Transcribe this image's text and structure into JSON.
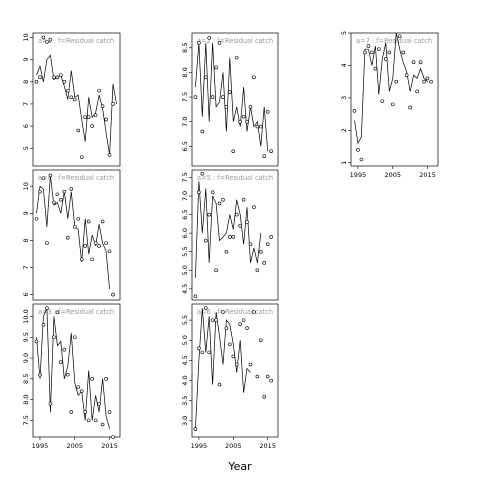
{
  "xlabel": "Year",
  "chart_data": [
    {
      "type": "line",
      "strip_label": "a=1  :  f=Residual catch",
      "xlim": [
        1993,
        2018
      ],
      "ylim": [
        4.2,
        10.2
      ],
      "yticks": [
        5,
        6,
        7,
        8,
        9,
        10
      ],
      "xticks": [
        1995,
        2005,
        2015
      ],
      "line": {
        "x": [
          1994,
          1995,
          1996,
          1997,
          1998,
          1999,
          2000,
          2001,
          2002,
          2003,
          2004,
          2005,
          2006,
          2007,
          2008,
          2009,
          2010,
          2011,
          2012,
          2013,
          2014,
          2015,
          2016,
          2017
        ],
        "y": [
          8.3,
          8.7,
          8.0,
          9.0,
          9.2,
          8.1,
          8.2,
          8.3,
          7.8,
          7.2,
          8.5,
          7.3,
          7.4,
          6.3,
          5.3,
          7.3,
          6.4,
          6.6,
          7.4,
          6.8,
          5.7,
          4.7,
          7.9,
          7.0
        ]
      },
      "points": {
        "x": [
          1994,
          1995,
          1996,
          1997,
          1998,
          1999,
          2000,
          2001,
          2002,
          2003,
          2004,
          2005,
          2006,
          2007,
          2008,
          2009,
          2010,
          2011,
          2012,
          2013,
          2014,
          2015,
          2016
        ],
        "y": [
          8.0,
          8.2,
          10.0,
          9.8,
          9.9,
          8.2,
          8.2,
          8.3,
          8.0,
          7.6,
          7.3,
          7.2,
          5.8,
          4.6,
          6.4,
          6.4,
          6.0,
          6.5,
          7.6,
          6.9,
          6.3,
          4.7,
          7.0
        ]
      }
    },
    {
      "type": "line",
      "strip_label": "a=4  :  f=Residual catch",
      "xlim": [
        1993,
        2018
      ],
      "ylim": [
        5.8,
        10.6
      ],
      "yticks": [
        6,
        7,
        8,
        9,
        10
      ],
      "xticks": [
        1995,
        2005,
        2015
      ],
      "line": {
        "x": [
          1994,
          1995,
          1996,
          1997,
          1998,
          1999,
          2000,
          2001,
          2002,
          2003,
          2004,
          2005,
          2006,
          2007,
          2008,
          2009,
          2010,
          2011,
          2012,
          2013,
          2014,
          2015,
          2016,
          2017
        ],
        "y": [
          9.0,
          10.0,
          9.9,
          8.5,
          10.4,
          9.3,
          9.4,
          9.0,
          9.8,
          8.8,
          9.8,
          8.5,
          8.4,
          7.2,
          8.8,
          7.5,
          8.2,
          7.8,
          8.6,
          7.9,
          7.6,
          6.2,
          null,
          null
        ]
      },
      "points": {
        "x": [
          1994,
          1995,
          1996,
          1997,
          1998,
          1999,
          2000,
          2001,
          2002,
          2003,
          2004,
          2005,
          2006,
          2007,
          2008,
          2009,
          2010,
          2011,
          2012,
          2013,
          2014,
          2015,
          2016
        ],
        "y": [
          8.8,
          9.8,
          10.3,
          7.9,
          10.4,
          9.4,
          9.7,
          9.5,
          9.8,
          8.1,
          9.9,
          8.5,
          8.8,
          7.3,
          7.8,
          8.7,
          7.3,
          7.9,
          7.8,
          8.7,
          7.9,
          7.6,
          6.0
        ]
      }
    },
    {
      "type": "line",
      "strip_label": "a=3  :  f=Residual catch",
      "xlim": [
        1993,
        2018
      ],
      "ylim": [
        7.1,
        10.3
      ],
      "yticks": [
        7.5,
        8.0,
        8.5,
        9.0,
        9.5,
        10.0
      ],
      "xticks": [
        1995,
        2005,
        2015
      ],
      "line": {
        "x": [
          1994,
          1995,
          1996,
          1997,
          1998,
          1999,
          2000,
          2001,
          2002,
          2003,
          2004,
          2005,
          2006,
          2007,
          2008,
          2009,
          2010,
          2011,
          2012,
          2013,
          2014,
          2015,
          2016,
          2017
        ],
        "y": [
          9.5,
          8.5,
          10.0,
          10.2,
          7.7,
          10.0,
          9.3,
          9.4,
          8.5,
          8.8,
          9.6,
          8.4,
          8.1,
          8.2,
          7.5,
          8.7,
          7.5,
          8.1,
          7.7,
          8.5,
          7.6,
          7.3,
          null,
          null
        ]
      },
      "points": {
        "x": [
          1994,
          1995,
          1996,
          1997,
          1998,
          1999,
          2000,
          2001,
          2002,
          2003,
          2004,
          2005,
          2006,
          2007,
          2008,
          2009,
          2010,
          2011,
          2012,
          2013,
          2014,
          2015,
          2016
        ],
        "y": [
          9.4,
          8.6,
          9.8,
          10.2,
          7.9,
          9.5,
          10.1,
          8.9,
          9.2,
          8.6,
          7.7,
          9.5,
          8.3,
          8.2,
          7.7,
          7.5,
          8.5,
          7.5,
          7.9,
          7.4,
          8.5,
          7.7,
          7.1
        ]
      }
    },
    {
      "type": "line",
      "strip_label": "a=2  :  f=Residual catch",
      "xlim": [
        1993,
        2018
      ],
      "ylim": [
        6.1,
        8.8
      ],
      "yticks": [
        6.5,
        7.0,
        7.5,
        8.0,
        8.5
      ],
      "xticks": [
        1995,
        2005,
        2015
      ],
      "line": {
        "x": [
          1994,
          1995,
          1996,
          1997,
          1998,
          1999,
          2000,
          2001,
          2002,
          2003,
          2004,
          2005,
          2006,
          2007,
          2008,
          2009,
          2010,
          2011,
          2012,
          2013,
          2014,
          2015,
          2016,
          2017
        ],
        "y": [
          7.7,
          8.6,
          7.1,
          8.6,
          7.0,
          8.6,
          7.3,
          7.4,
          8.0,
          6.8,
          8.3,
          7.0,
          7.3,
          6.9,
          7.7,
          6.8,
          7.3,
          6.9,
          7.0,
          6.5,
          7.3,
          6.4,
          null,
          null
        ]
      },
      "points": {
        "x": [
          1994,
          1995,
          1996,
          1997,
          1998,
          1999,
          2000,
          2001,
          2002,
          2003,
          2004,
          2005,
          2006,
          2007,
          2008,
          2009,
          2010,
          2011,
          2012,
          2013,
          2014,
          2015,
          2016
        ],
        "y": [
          7.5,
          8.6,
          6.8,
          7.9,
          8.7,
          7.5,
          8.1,
          8.6,
          7.5,
          7.3,
          7.6,
          6.4,
          8.3,
          7.0,
          7.1,
          7.0,
          7.3,
          7.9,
          6.9,
          6.9,
          6.3,
          7.2,
          6.4
        ]
      }
    },
    {
      "type": "line",
      "strip_label": "a=5  :  f=Residual catch",
      "xlim": [
        1993,
        2018
      ],
      "ylim": [
        4.2,
        7.7
      ],
      "yticks": [
        4.5,
        5.0,
        5.5,
        6.0,
        6.5,
        7.0,
        7.5
      ],
      "xticks": [
        1995,
        2005,
        2015
      ],
      "line": {
        "x": [
          1994,
          1995,
          1996,
          1997,
          1998,
          1999,
          2000,
          2001,
          2002,
          2003,
          2004,
          2005,
          2006,
          2007,
          2008,
          2009,
          2010,
          2011,
          2012,
          2013,
          2014,
          2015,
          2016,
          2017
        ],
        "y": [
          4.8,
          7.4,
          6.0,
          7.2,
          5.2,
          7.0,
          6.8,
          5.8,
          5.9,
          6.0,
          6.5,
          6.1,
          6.9,
          6.5,
          5.7,
          6.7,
          5.2,
          5.6,
          5.2,
          6.0,
          null,
          null,
          null,
          null
        ]
      },
      "points": {
        "x": [
          1994,
          1995,
          1996,
          1997,
          1998,
          1999,
          2000,
          2001,
          2002,
          2003,
          2004,
          2005,
          2006,
          2007,
          2008,
          2009,
          2010,
          2011,
          2012,
          2013,
          2014,
          2015,
          2016
        ],
        "y": [
          4.3,
          7.1,
          7.6,
          5.8,
          6.5,
          7.1,
          5.0,
          6.8,
          6.9,
          5.5,
          5.9,
          5.9,
          6.5,
          6.2,
          6.9,
          6.3,
          5.7,
          6.7,
          5.0,
          5.5,
          5.2,
          5.7,
          5.9
        ]
      }
    },
    {
      "type": "line",
      "strip_label": "a=6  :  f=Residual catch",
      "xlim": [
        1993,
        2018
      ],
      "ylim": [
        2.6,
        5.9
      ],
      "yticks": [
        3.0,
        3.5,
        4.0,
        4.5,
        5.0,
        5.5
      ],
      "xticks": [
        1995,
        2005,
        2015
      ],
      "line": {
        "x": [
          1994,
          1995,
          1996,
          1997,
          1998,
          1999,
          2000,
          2001,
          2002,
          2003,
          2004,
          2005,
          2006,
          2007,
          2008,
          2009,
          2010,
          2011,
          2012,
          2013,
          2014,
          2015,
          2016,
          2017
        ],
        "y": [
          2.8,
          4.5,
          5.8,
          4.7,
          5.6,
          3.9,
          5.7,
          5.1,
          4.4,
          5.5,
          5.4,
          4.9,
          4.2,
          5.0,
          3.7,
          4.3,
          4.2,
          null,
          null,
          null,
          null,
          null,
          null,
          null
        ]
      },
      "points": {
        "x": [
          1994,
          1995,
          1996,
          1997,
          1998,
          1999,
          2000,
          2001,
          2002,
          2003,
          2004,
          2005,
          2006,
          2007,
          2008,
          2009,
          2010,
          2011,
          2012,
          2013,
          2014,
          2015,
          2016
        ],
        "y": [
          2.8,
          4.8,
          4.7,
          5.8,
          4.7,
          5.5,
          5.5,
          3.9,
          5.7,
          5.3,
          4.9,
          4.6,
          4.4,
          5.4,
          5.5,
          5.3,
          4.4,
          5.7,
          4.1,
          5.0,
          3.6,
          4.1,
          4.0
        ]
      }
    },
    {
      "type": "line",
      "strip_label": "a=7  :  f=Residual catch",
      "xlim": [
        1993,
        2018
      ],
      "ylim": [
        0.9,
        5.0
      ],
      "yticks": [
        1,
        2,
        3,
        4,
        5
      ],
      "xticks": [
        1995,
        2005,
        2015
      ],
      "line": {
        "x": [
          1994,
          1995,
          1996,
          1997,
          1998,
          1999,
          2000,
          2001,
          2002,
          2003,
          2004,
          2005,
          2006,
          2007,
          2008,
          2009,
          2010,
          2011,
          2012,
          2013,
          2014,
          2015,
          2016,
          2017
        ],
        "y": [
          2.3,
          1.6,
          1.8,
          4.5,
          4.5,
          4.0,
          4.6,
          3.1,
          4.2,
          4.7,
          3.2,
          3.6,
          5.0,
          4.5,
          4.1,
          3.8,
          3.2,
          3.7,
          3.6,
          3.9,
          3.6,
          3.5,
          null,
          null
        ]
      },
      "points": {
        "x": [
          1994,
          1995,
          1996,
          1997,
          1998,
          1999,
          2000,
          2001,
          2002,
          2003,
          2004,
          2005,
          2006,
          2007,
          2008,
          2009,
          2010,
          2011,
          2012,
          2013,
          2014,
          2015,
          2016
        ],
        "y": [
          2.6,
          1.4,
          1.1,
          4.4,
          4.6,
          4.4,
          3.9,
          4.5,
          2.9,
          4.2,
          4.4,
          2.8,
          3.5,
          4.9,
          4.4,
          3.7,
          2.7,
          4.1,
          3.2,
          4.1,
          3.5,
          3.6,
          3.5
        ]
      }
    }
  ]
}
